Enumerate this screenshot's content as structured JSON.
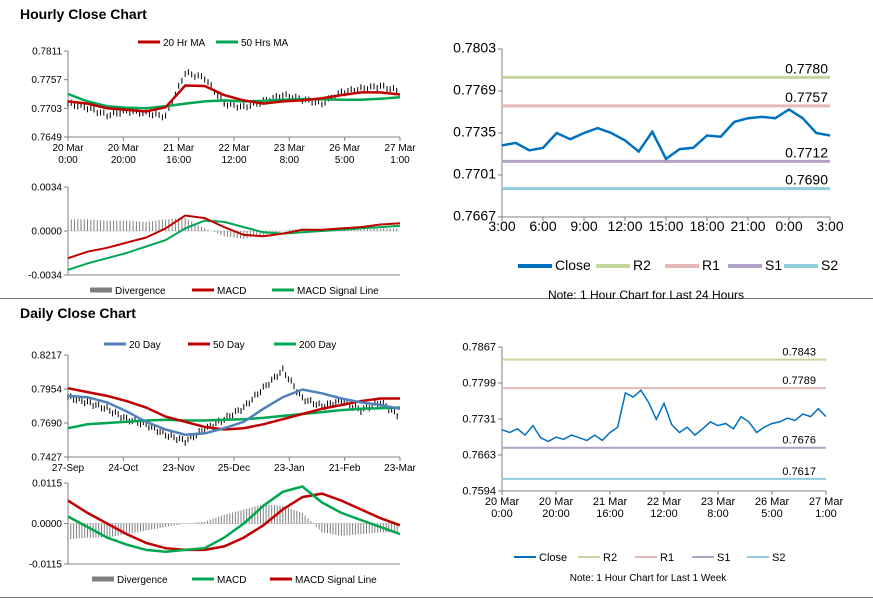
{
  "sections": {
    "hourly_title": "Hourly Close Chart",
    "daily_title": "Daily Close Chart"
  },
  "colors": {
    "ma_short": "#c00000",
    "ma_long": "#00a651",
    "ma_blue": "#4f81bd",
    "close_line": "#0070c0",
    "r2": "#c3d69b",
    "r1": "#e6b9b8",
    "s1": "#b3a2c7",
    "s2": "#93cddd",
    "divergence": "#7f7f7f",
    "axis": "#808080"
  },
  "chart_data": [
    {
      "id": "hourly_price",
      "type": "line",
      "legend": [
        "20 Hr MA",
        "50 Hrs MA"
      ],
      "ylim": [
        0.7649,
        0.7811
      ],
      "yticks": [
        "0.7811",
        "0.7757",
        "0.7703",
        "0.7649"
      ],
      "xticks": [
        [
          "20 Mar",
          "0:00"
        ],
        [
          "20 Mar",
          "20:00"
        ],
        [
          "21 Mar",
          "16:00"
        ],
        [
          "22 Mar",
          "12:00"
        ],
        [
          "23 Mar",
          "8:00"
        ],
        [
          "26 Mar",
          "5:00"
        ],
        [
          "27 Mar",
          "1:00"
        ]
      ],
      "series": [
        {
          "name": "20 Hr MA",
          "values": [
            0.7716,
            0.7712,
            0.7703,
            0.77,
            0.7697,
            0.7705,
            0.7746,
            0.7745,
            0.7728,
            0.7718,
            0.7712,
            0.7716,
            0.7718,
            0.7722,
            0.7728,
            0.7733,
            0.7733,
            0.7729
          ]
        },
        {
          "name": "50 Hrs MA",
          "values": [
            0.773,
            0.7716,
            0.7707,
            0.7704,
            0.7703,
            0.7707,
            0.7712,
            0.7716,
            0.7718,
            0.7716,
            0.7717,
            0.7719,
            0.772,
            0.772,
            0.7719,
            0.7719,
            0.7721,
            0.7724
          ]
        }
      ],
      "close": [
        0.7712,
        0.7704,
        0.769,
        0.7698,
        0.7694,
        0.7688,
        0.777,
        0.776,
        0.7712,
        0.7705,
        0.7716,
        0.7728,
        0.772,
        0.7712,
        0.7733,
        0.774,
        0.7745,
        0.7735
      ]
    },
    {
      "id": "hourly_macd",
      "type": "line",
      "legend": [
        "Divergence",
        "MACD",
        "MACD Signal Line"
      ],
      "ylim": [
        -0.0034,
        0.0034
      ],
      "yticks": [
        "0.0034",
        "0.0000",
        "-0.0034"
      ],
      "series": [
        {
          "name": "MACD",
          "values": [
            -0.0021,
            -0.0016,
            -0.0013,
            -0.0009,
            -0.0005,
            0.0002,
            0.0012,
            0.001,
            0.0003,
            -0.0003,
            -0.0004,
            -0.0002,
            0.0001,
            0.0001,
            0.0002,
            0.0003,
            0.0005,
            0.0006
          ]
        },
        {
          "name": "MACD Signal Line",
          "values": [
            -0.003,
            -0.0025,
            -0.0021,
            -0.0017,
            -0.0012,
            -0.0007,
            0.0002,
            0.0008,
            0.0007,
            0.0003,
            -0.0001,
            -0.0002,
            -0.0001,
            0.0,
            0.0001,
            0.0002,
            0.0003,
            0.0004
          ]
        }
      ]
    },
    {
      "id": "hourly_pivots",
      "type": "line",
      "legend": [
        "Close",
        "R2",
        "R1",
        "S1",
        "S2"
      ],
      "ylim": [
        0.7667,
        0.7803
      ],
      "yticks": [
        "0.7803",
        "0.7769",
        "0.7735",
        "0.7701",
        "0.7667"
      ],
      "xticks": [
        "3:00",
        "6:00",
        "9:00",
        "12:00",
        "15:00",
        "18:00",
        "21:00",
        "0:00",
        "3:00"
      ],
      "levels": [
        {
          "name": "R2",
          "value": 0.778,
          "label": "0.7780"
        },
        {
          "name": "R1",
          "value": 0.7757,
          "label": "0.7757"
        },
        {
          "name": "S1",
          "value": 0.7712,
          "label": "0.7712"
        },
        {
          "name": "S2",
          "value": 0.769,
          "label": "0.7690"
        }
      ],
      "series": [
        {
          "name": "Close",
          "values": [
            0.7725,
            0.7727,
            0.7721,
            0.7723,
            0.7735,
            0.773,
            0.7735,
            0.7739,
            0.7735,
            0.7729,
            0.772,
            0.7736,
            0.7714,
            0.7722,
            0.7723,
            0.7733,
            0.7732,
            0.7744,
            0.7747,
            0.7748,
            0.7747,
            0.7754,
            0.7747,
            0.7735,
            0.7733
          ]
        }
      ],
      "note": "Note: 1 Hour Chart for Last 24 Hours"
    },
    {
      "id": "daily_price",
      "type": "line",
      "legend": [
        "20 Day",
        "50 Day",
        "200 Day"
      ],
      "ylim": [
        0.7427,
        0.8217
      ],
      "yticks": [
        "0.8217",
        "0.7954",
        "0.7690",
        "0.7427"
      ],
      "xticks": [
        "27-Sep",
        "24-Oct",
        "23-Nov",
        "25-Dec",
        "23-Jan",
        "21-Feb",
        "23-Mar"
      ],
      "series": [
        {
          "name": "20 Day",
          "values": [
            0.79,
            0.789,
            0.785,
            0.778,
            0.77,
            0.764,
            0.76,
            0.761,
            0.765,
            0.77,
            0.78,
            0.789,
            0.795,
            0.792,
            0.788,
            0.785,
            0.783,
            0.78
          ]
        },
        {
          "name": "50 Day",
          "values": [
            0.796,
            0.793,
            0.79,
            0.786,
            0.781,
            0.774,
            0.77,
            0.766,
            0.764,
            0.765,
            0.768,
            0.772,
            0.776,
            0.78,
            0.783,
            0.786,
            0.788,
            0.788
          ]
        },
        {
          "name": "200 Day",
          "values": [
            0.765,
            0.768,
            0.769,
            0.77,
            0.771,
            0.7715,
            0.771,
            0.771,
            0.7715,
            0.772,
            0.773,
            0.7745,
            0.776,
            0.7775,
            0.779,
            0.78,
            0.7805,
            0.781
          ]
        }
      ],
      "close": [
        0.789,
        0.785,
        0.78,
        0.772,
        0.768,
        0.76,
        0.755,
        0.764,
        0.772,
        0.781,
        0.796,
        0.81,
        0.788,
        0.782,
        0.786,
        0.779,
        0.785,
        0.774
      ]
    },
    {
      "id": "daily_macd",
      "type": "line",
      "legend": [
        "Divergence",
        "MACD",
        "MACD Signal Line"
      ],
      "ylim": [
        -0.0115,
        0.0115
      ],
      "yticks": [
        "0.0115",
        "0.0000",
        "-0.0115"
      ],
      "series": [
        {
          "name": "MACD",
          "values": [
            0.002,
            -0.001,
            -0.004,
            -0.006,
            -0.0075,
            -0.008,
            -0.0075,
            -0.007,
            -0.004,
            0.0,
            0.005,
            0.009,
            0.0105,
            0.006,
            0.003,
            0.001,
            -0.001,
            -0.003
          ]
        },
        {
          "name": "MACD Signal Line",
          "values": [
            0.0065,
            0.003,
            0.0,
            -0.003,
            -0.0055,
            -0.007,
            -0.0075,
            -0.0075,
            -0.0065,
            -0.004,
            -0.0005,
            0.004,
            0.0075,
            0.0085,
            0.0065,
            0.004,
            0.0015,
            -0.0005
          ]
        }
      ]
    },
    {
      "id": "daily_pivots",
      "type": "line",
      "legend": [
        "Close",
        "R2",
        "R1",
        "S1",
        "S2"
      ],
      "ylim": [
        0.7594,
        0.7867
      ],
      "yticks": [
        "0.7867",
        "0.7799",
        "0.7731",
        "0.7663",
        "0.7594"
      ],
      "xticks": [
        [
          "20 Mar",
          "0:00"
        ],
        [
          "20 Mar",
          "20:00"
        ],
        [
          "21 Mar",
          "16:00"
        ],
        [
          "22 Mar",
          "12:00"
        ],
        [
          "23 Mar",
          "8:00"
        ],
        [
          "26 Mar",
          "5:00"
        ],
        [
          "27 Mar",
          "1:00"
        ]
      ],
      "levels": [
        {
          "name": "R2",
          "value": 0.7843,
          "label": "0.7843"
        },
        {
          "name": "R1",
          "value": 0.7789,
          "label": "0.7789"
        },
        {
          "name": "S1",
          "value": 0.7676,
          "label": "0.7676"
        },
        {
          "name": "S2",
          "value": 0.7617,
          "label": "0.7617"
        }
      ],
      "series": [
        {
          "name": "Close",
          "values": [
            0.771,
            0.7705,
            0.7712,
            0.77,
            0.7718,
            0.7695,
            0.7688,
            0.7696,
            0.7692,
            0.77,
            0.7695,
            0.769,
            0.77,
            0.769,
            0.7705,
            0.7715,
            0.778,
            0.7772,
            0.7785,
            0.7762,
            0.773,
            0.776,
            0.772,
            0.7705,
            0.7715,
            0.77,
            0.7712,
            0.7725,
            0.7718,
            0.7722,
            0.7712,
            0.7735,
            0.7725,
            0.7705,
            0.7715,
            0.7722,
            0.7725,
            0.7732,
            0.7728,
            0.774,
            0.7735,
            0.775,
            0.7735
          ]
        }
      ],
      "note": "Note: 1 Hour Chart for Last 1 Week"
    }
  ]
}
